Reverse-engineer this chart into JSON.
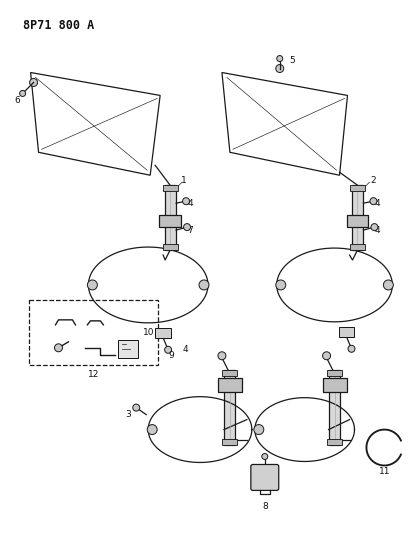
{
  "title": "8P71 800 A",
  "bg_color": "#ffffff",
  "line_color": "#1a1a1a",
  "text_color": "#111111",
  "fig_width": 4.09,
  "fig_height": 5.33,
  "dpi": 100
}
